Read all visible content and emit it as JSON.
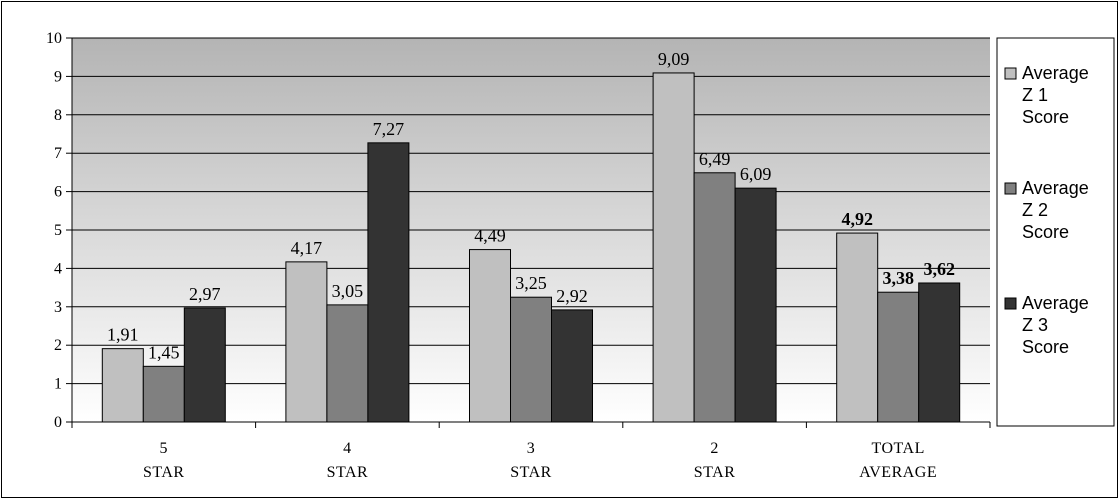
{
  "chart_data": {
    "type": "bar",
    "categories": [
      "5 STAR",
      "4 STAR",
      "3 STAR",
      "2 STAR",
      "TOTAL AVERAGE"
    ],
    "series": [
      {
        "name": "Average Z 1 Score",
        "legend_lines": [
          "Average",
          "Z 1",
          "Score"
        ],
        "values": [
          1.91,
          4.17,
          4.49,
          9.09,
          4.92
        ],
        "labels": [
          "1,91",
          "4,17",
          "4,49",
          "9,09",
          "4,92"
        ],
        "color": "#c0c0c0"
      },
      {
        "name": "Average Z 2 Score",
        "legend_lines": [
          "Average",
          "Z 2",
          "Score"
        ],
        "values": [
          1.45,
          3.05,
          3.25,
          6.49,
          3.38
        ],
        "labels": [
          "1,45",
          "3,05",
          "3,25",
          "6,49",
          "3,38"
        ],
        "color": "#808080"
      },
      {
        "name": "Average Z 3 Score",
        "legend_lines": [
          "Average",
          "Z 3",
          "Score"
        ],
        "values": [
          2.97,
          7.27,
          2.92,
          6.09,
          3.62
        ],
        "labels": [
          "2,97",
          "7,27",
          "2,92",
          "6,09",
          "3,62"
        ],
        "color": "#333333"
      }
    ],
    "ylim": [
      0,
      10
    ],
    "yticks": [
      "0",
      "1",
      "2",
      "3",
      "4",
      "5",
      "6",
      "7",
      "8",
      "9",
      "10"
    ],
    "grid": true,
    "legend_position": "right",
    "title": "",
    "xlabel": "",
    "ylabel": ""
  }
}
